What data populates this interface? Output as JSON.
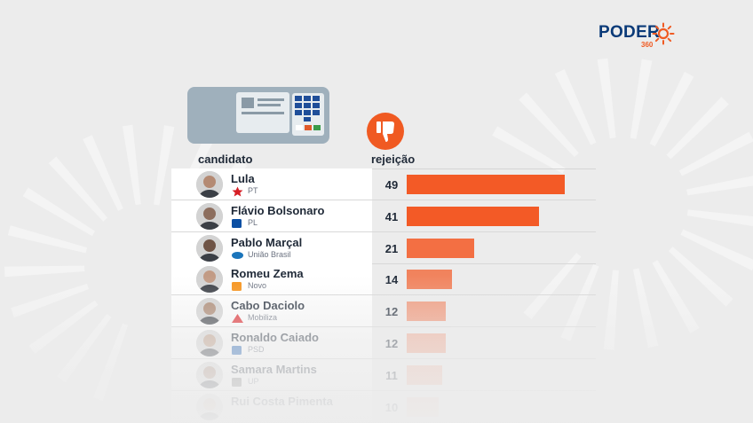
{
  "brand": {
    "name": "PODER",
    "suffix": "360",
    "color": "#0a3a78",
    "accent": "#f05a22"
  },
  "illustration": {
    "machine_icon": "voting-machine-icon",
    "thumb_icon": "thumbs-down-icon"
  },
  "chart_data": {
    "type": "bar",
    "orientation": "horizontal",
    "title": "",
    "xlabel": "",
    "ylabel": "",
    "column_headers": {
      "candidate": "candidato",
      "value": "rejeição"
    },
    "xlim": [
      0,
      60
    ],
    "grid": false,
    "legend": "none",
    "bar_color": "#f35a26",
    "categories": [
      "Lula",
      "Flávio Bolsonaro",
      "Pablo Marçal",
      "Romeu Zema",
      "Cabo Daciolo",
      "Ronaldo Caiado",
      "Samara Martins",
      "Rui Costa Pimenta"
    ],
    "values": [
      49,
      41,
      21,
      14,
      12,
      12,
      11,
      10
    ],
    "value_labels": [
      "49",
      "41",
      "21",
      "14",
      "12",
      "12",
      "11",
      "10"
    ],
    "parties": [
      "PT",
      "PL",
      "União Brasil",
      "Novo",
      "Mobiliza",
      "PSD",
      "UP",
      ""
    ],
    "party_colors": [
      "#d61f26",
      "#0b4fa3",
      "#1b75bb",
      "#f7941d",
      "#e0262b",
      "#1a5fb4",
      "#6b6b6b",
      "#888888"
    ]
  }
}
